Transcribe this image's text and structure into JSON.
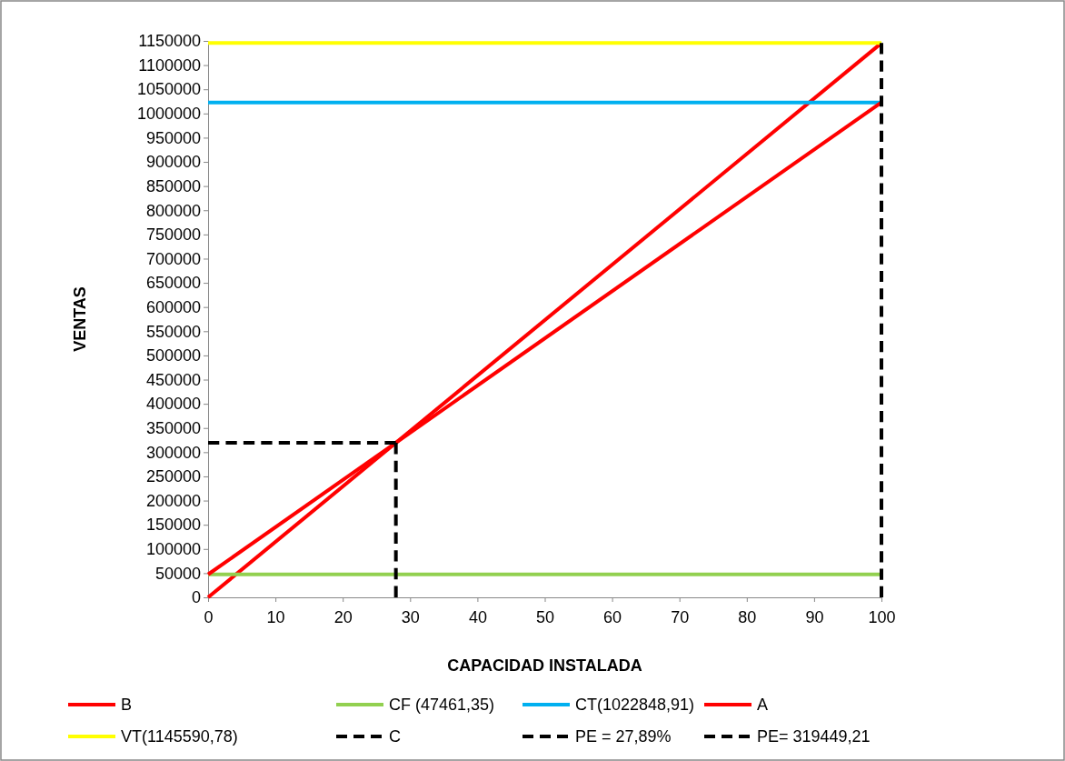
{
  "chart_data": {
    "type": "line",
    "xlabel": "CAPACIDAD INSTALADA",
    "ylabel": "VENTAS",
    "xlim": [
      0,
      100
    ],
    "xticks": [
      0,
      10,
      20,
      30,
      40,
      50,
      60,
      70,
      80,
      90,
      100
    ],
    "ylim": [
      0,
      1150000
    ],
    "yticks": [
      0,
      50000,
      100000,
      150000,
      200000,
      250000,
      300000,
      350000,
      400000,
      450000,
      500000,
      550000,
      600000,
      650000,
      700000,
      750000,
      800000,
      850000,
      900000,
      950000,
      1000000,
      1050000,
      1100000,
      1150000
    ],
    "grid": false,
    "legend": "bottom",
    "marker": "none",
    "series": [
      {
        "name": "B",
        "color": "#ff0000",
        "x": [
          0,
          100
        ],
        "values": [
          0,
          1145590.78
        ],
        "line_style": "solid"
      },
      {
        "name": "CF (47461,35)",
        "color": "#92d050",
        "x": [
          0,
          100
        ],
        "values": [
          47461.35,
          47461.35
        ],
        "line_style": "solid"
      },
      {
        "name": "CT(1022848,91)",
        "color": "#00b0f0",
        "x": [
          0,
          100
        ],
        "values": [
          1022848.91,
          1022848.91
        ],
        "line_style": "solid"
      },
      {
        "name": "A",
        "color": "#ff0000",
        "x": [
          0,
          100
        ],
        "values": [
          47461.35,
          1022848.91
        ],
        "line_style": "solid"
      },
      {
        "name": "VT(1145590,78)",
        "color": "#ffff00",
        "x": [
          0,
          100
        ],
        "values": [
          1145590.78,
          1145590.78
        ],
        "line_style": "solid"
      },
      {
        "name": "C",
        "color": "#000000",
        "x": [
          100,
          100
        ],
        "values": [
          0,
          1145590.78
        ],
        "line_style": "dashed"
      },
      {
        "name": "PE = 27,89%",
        "color": "#000000",
        "x": [
          27.89,
          27.89
        ],
        "values": [
          0,
          319449.21
        ],
        "line_style": "dashed"
      },
      {
        "name": "PE= 319449,21",
        "color": "#000000",
        "x": [
          0,
          27.89
        ],
        "values": [
          319449.21,
          319449.21
        ],
        "line_style": "dashed"
      }
    ]
  }
}
